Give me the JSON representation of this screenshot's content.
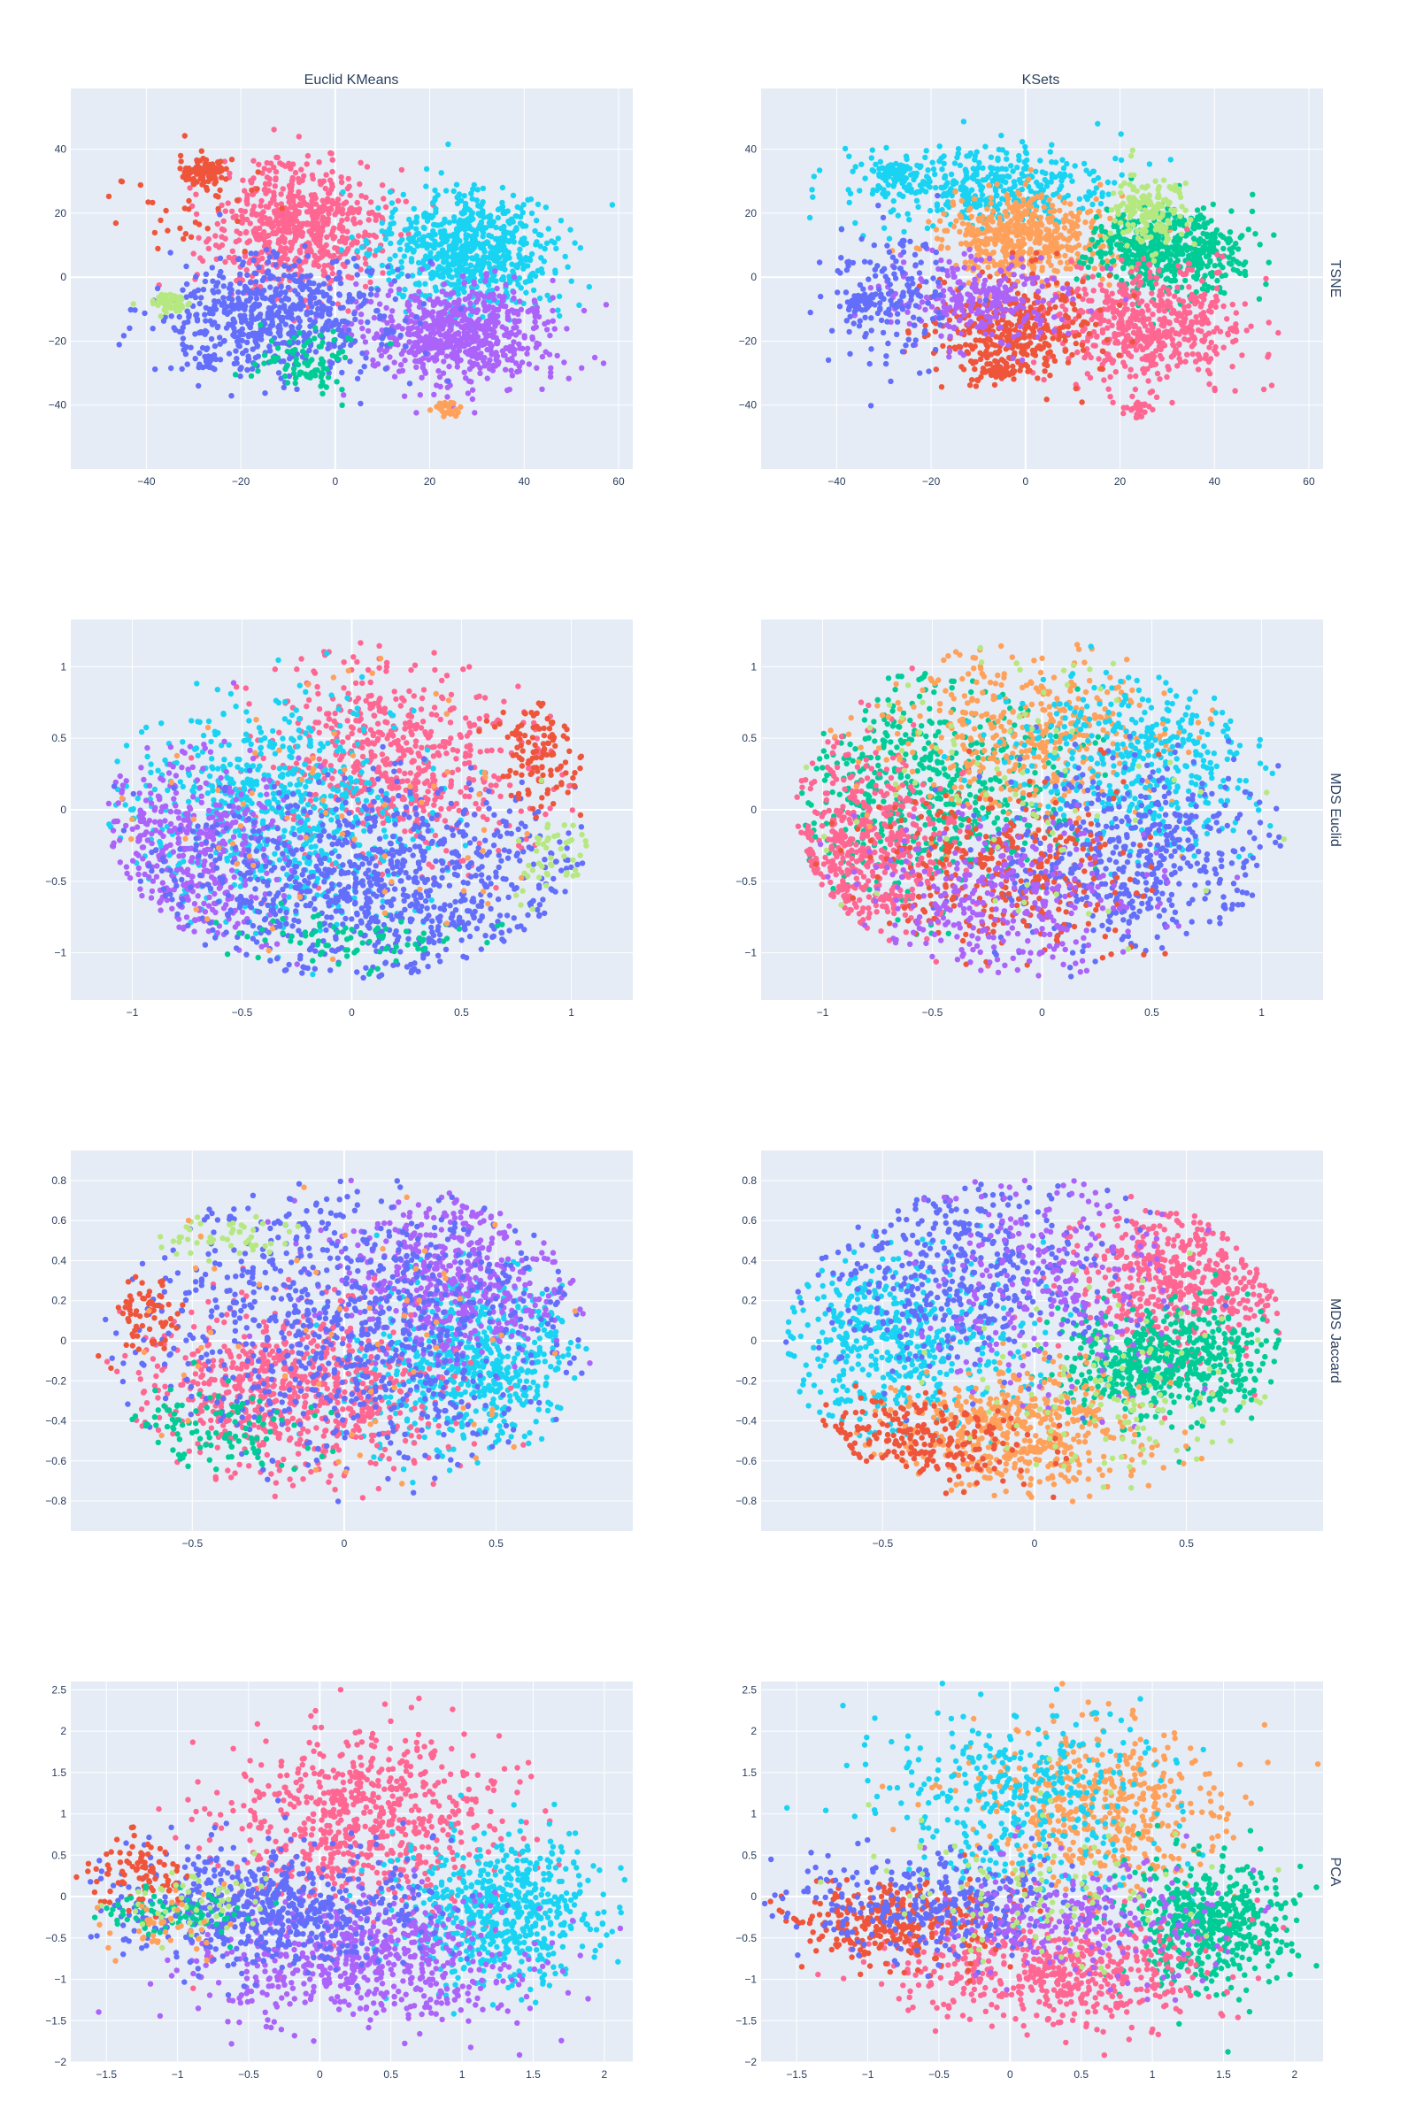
{
  "colors": {
    "c0": "#636efa",
    "c1": "#ef553b",
    "c2": "#00cc96",
    "c3": "#ab63fa",
    "c4": "#ffa15a",
    "c5": "#19d3f3",
    "c6": "#ff6692",
    "c7": "#b6e880",
    "plot_bg": "#e5ecf6",
    "grid": "#ffffff",
    "text": "#2a3f5f"
  },
  "chart_data": {
    "type": "scatter",
    "column_titles": [
      "Euclid KMeans",
      "KSets"
    ],
    "row_titles": [
      "TSNE",
      "MDS Euclid",
      "MDS Jaccard",
      "PCA"
    ],
    "grid": true,
    "rows": [
      {
        "name": "TSNE",
        "xrange": [
          -56,
          63
        ],
        "yrange": [
          -60,
          59
        ],
        "xticks": [
          -40,
          -20,
          0,
          20,
          40,
          60
        ],
        "xtick_labels": [
          "−40",
          "−20",
          "0",
          "20",
          "40",
          "60"
        ],
        "yticks": [
          -40,
          -20,
          0,
          20,
          40
        ],
        "ytick_labels": [
          "−40",
          "−20",
          "0",
          "20",
          "40"
        ],
        "left": {
          "title": "Euclid KMeans",
          "clusters": [
            {
              "color": "c6",
              "cx": -8,
              "cy": 16,
              "sx": 9,
              "sy": 10,
              "n": 650
            },
            {
              "color": "c5",
              "cx": 28,
              "cy": 8,
              "sx": 9,
              "sy": 9,
              "n": 720
            },
            {
              "color": "c3",
              "cx": 26,
              "cy": -18,
              "sx": 10,
              "sy": 8,
              "n": 650
            },
            {
              "color": "c0",
              "cx": -12,
              "cy": -12,
              "sx": 13,
              "sy": 9,
              "n": 620
            },
            {
              "color": "c2",
              "cx": -6,
              "cy": -26,
              "sx": 6,
              "sy": 5,
              "n": 90
            },
            {
              "color": "c1",
              "cx": -28,
              "cy": 33,
              "sx": 2.5,
              "sy": 2,
              "n": 90
            },
            {
              "color": "c1",
              "cx": -30,
              "cy": 25,
              "sx": 8,
              "sy": 8,
              "n": 45
            },
            {
              "color": "c7",
              "cx": -35,
              "cy": -8,
              "sx": 2,
              "sy": 1.5,
              "n": 60
            },
            {
              "color": "c4",
              "cx": 24,
              "cy": -41,
              "sx": 1.5,
              "sy": 1.5,
              "n": 35
            },
            {
              "color": "c0",
              "cx": -27,
              "cy": -26,
              "sx": 1.2,
              "sy": 1.2,
              "n": 20
            }
          ]
        },
        "right": {
          "title": "KSets",
          "clusters": [
            {
              "color": "c5",
              "cx": -8,
              "cy": 28,
              "sx": 14,
              "sy": 6,
              "n": 420
            },
            {
              "color": "c4",
              "cx": 0,
              "cy": 12,
              "sx": 9,
              "sy": 7,
              "n": 480
            },
            {
              "color": "c2",
              "cx": 30,
              "cy": 8,
              "sx": 8,
              "sy": 7,
              "n": 520
            },
            {
              "color": "c7",
              "cx": 26,
              "cy": 22,
              "sx": 4,
              "sy": 6,
              "n": 160
            },
            {
              "color": "c6",
              "cx": 25,
              "cy": -16,
              "sx": 10,
              "sy": 9,
              "n": 560
            },
            {
              "color": "c1",
              "cx": -2,
              "cy": -16,
              "sx": 9,
              "sy": 8,
              "n": 380
            },
            {
              "color": "c3",
              "cx": -10,
              "cy": -8,
              "sx": 10,
              "sy": 8,
              "n": 260
            },
            {
              "color": "c0",
              "cx": -28,
              "cy": -6,
              "sx": 7,
              "sy": 10,
              "n": 160
            },
            {
              "color": "c5",
              "cx": -28,
              "cy": 33,
              "sx": 2,
              "sy": 1.6,
              "n": 60
            },
            {
              "color": "c0",
              "cx": -35,
              "cy": -8,
              "sx": 1.8,
              "sy": 1.4,
              "n": 45
            },
            {
              "color": "c1",
              "cx": -6,
              "cy": -29,
              "sx": 2,
              "sy": 1.5,
              "n": 60
            },
            {
              "color": "c6",
              "cx": 24,
              "cy": -41,
              "sx": 1.5,
              "sy": 1.4,
              "n": 30
            }
          ]
        }
      },
      {
        "name": "MDS Euclid",
        "xrange": [
          -1.28,
          1.28
        ],
        "yrange": [
          -1.33,
          1.33
        ],
        "xticks": [
          -1,
          -0.5,
          0,
          0.5,
          1
        ],
        "xtick_labels": [
          "−1",
          "−0.5",
          "0",
          "0.5",
          "1"
        ],
        "yticks": [
          -1,
          -0.5,
          0,
          0.5,
          1
        ],
        "ytick_labels": [
          "−1",
          "−0.5",
          "0",
          "0.5",
          "1"
        ],
        "ellipse": {
          "rx": 1.12,
          "ry": 1.18
        },
        "left": {
          "title": "Euclid KMeans",
          "clusters": [
            {
              "color": "c6",
              "cx": 0.2,
              "cy": 0.35,
              "sx": 0.3,
              "sy": 0.35,
              "n": 620
            },
            {
              "color": "c5",
              "cx": -0.35,
              "cy": 0.0,
              "sx": 0.35,
              "sy": 0.4,
              "n": 680
            },
            {
              "color": "c3",
              "cx": -0.75,
              "cy": -0.3,
              "sx": 0.22,
              "sy": 0.35,
              "n": 420
            },
            {
              "color": "c0",
              "cx": 0.15,
              "cy": -0.55,
              "sx": 0.5,
              "sy": 0.35,
              "n": 900
            },
            {
              "color": "c1",
              "cx": 0.85,
              "cy": 0.4,
              "sx": 0.1,
              "sy": 0.18,
              "n": 120
            },
            {
              "color": "c7",
              "cx": 0.92,
              "cy": -0.3,
              "sx": 0.08,
              "sy": 0.18,
              "n": 50
            },
            {
              "color": "c2",
              "cx": 0.0,
              "cy": -0.95,
              "sx": 0.3,
              "sy": 0.1,
              "n": 80
            },
            {
              "color": "c4",
              "cx": -0.2,
              "cy": 0.0,
              "sx": 0.6,
              "sy": 0.6,
              "n": 70
            }
          ]
        },
        "right": {
          "title": "KSets",
          "clusters": [
            {
              "color": "c2",
              "cx": -0.55,
              "cy": 0.15,
              "sx": 0.3,
              "sy": 0.35,
              "n": 550
            },
            {
              "color": "c6",
              "cx": -0.85,
              "cy": -0.3,
              "sx": 0.22,
              "sy": 0.35,
              "n": 480
            },
            {
              "color": "c4",
              "cx": -0.1,
              "cy": 0.55,
              "sx": 0.35,
              "sy": 0.3,
              "n": 420
            },
            {
              "color": "c5",
              "cx": 0.45,
              "cy": 0.35,
              "sx": 0.3,
              "sy": 0.3,
              "n": 420
            },
            {
              "color": "c0",
              "cx": 0.4,
              "cy": -0.35,
              "sx": 0.35,
              "sy": 0.35,
              "n": 520
            },
            {
              "color": "c1",
              "cx": -0.15,
              "cy": -0.45,
              "sx": 0.3,
              "sy": 0.3,
              "n": 320
            },
            {
              "color": "c3",
              "cx": -0.2,
              "cy": -0.65,
              "sx": 0.35,
              "sy": 0.3,
              "n": 320
            },
            {
              "color": "c7",
              "cx": -0.2,
              "cy": 0.3,
              "sx": 0.5,
              "sy": 0.6,
              "n": 80
            }
          ]
        }
      },
      {
        "name": "MDS Jaccard",
        "xrange": [
          -0.9,
          0.95
        ],
        "yrange": [
          -0.95,
          0.95
        ],
        "xticks": [
          -0.5,
          0,
          0.5
        ],
        "xtick_labels": [
          "−0.5",
          "0",
          "0.5"
        ],
        "yticks": [
          -0.8,
          -0.6,
          -0.4,
          -0.2,
          0,
          0.2,
          0.4,
          0.6,
          0.8
        ],
        "ytick_labels": [
          "−0.8",
          "−0.6",
          "−0.4",
          "−0.2",
          "0",
          "0.2",
          "0.4",
          "0.6",
          "0.8"
        ],
        "ellipse": {
          "rx": 0.82,
          "ry": 0.82
        },
        "left": {
          "title": "Euclid KMeans",
          "clusters": [
            {
              "color": "c5",
              "cx": 0.42,
              "cy": -0.12,
              "sx": 0.18,
              "sy": 0.22,
              "n": 620
            },
            {
              "color": "c3",
              "cx": 0.35,
              "cy": 0.3,
              "sx": 0.2,
              "sy": 0.22,
              "n": 520
            },
            {
              "color": "c6",
              "cx": -0.15,
              "cy": -0.25,
              "sx": 0.25,
              "sy": 0.22,
              "n": 720
            },
            {
              "color": "c0",
              "cx": 0.0,
              "cy": 0.1,
              "sx": 0.38,
              "sy": 0.38,
              "n": 820
            },
            {
              "color": "c1",
              "cx": -0.65,
              "cy": 0.12,
              "sx": 0.06,
              "sy": 0.1,
              "n": 70
            },
            {
              "color": "c7",
              "cx": -0.4,
              "cy": 0.52,
              "sx": 0.12,
              "sy": 0.06,
              "n": 50
            },
            {
              "color": "c2",
              "cx": -0.5,
              "cy": -0.45,
              "sx": 0.2,
              "sy": 0.12,
              "n": 110
            },
            {
              "color": "c4",
              "cx": 0.0,
              "cy": 0.0,
              "sx": 0.45,
              "sy": 0.45,
              "n": 60
            }
          ]
        },
        "right": {
          "title": "KSets",
          "clusters": [
            {
              "color": "c6",
              "cx": 0.5,
              "cy": 0.3,
              "sx": 0.18,
              "sy": 0.2,
              "n": 520
            },
            {
              "color": "c2",
              "cx": 0.42,
              "cy": -0.1,
              "sx": 0.18,
              "sy": 0.15,
              "n": 560
            },
            {
              "color": "c5",
              "cx": -0.45,
              "cy": 0.0,
              "sx": 0.2,
              "sy": 0.22,
              "n": 480
            },
            {
              "color": "c4",
              "cx": -0.05,
              "cy": -0.45,
              "sx": 0.2,
              "sy": 0.15,
              "n": 520
            },
            {
              "color": "c0",
              "cx": -0.25,
              "cy": 0.35,
              "sx": 0.25,
              "sy": 0.25,
              "n": 440
            },
            {
              "color": "c3",
              "cx": 0.05,
              "cy": 0.35,
              "sx": 0.2,
              "sy": 0.3,
              "n": 250
            },
            {
              "color": "c1",
              "cx": -0.4,
              "cy": -0.5,
              "sx": 0.2,
              "sy": 0.12,
              "n": 220
            },
            {
              "color": "c7",
              "cx": 0.3,
              "cy": -0.3,
              "sx": 0.25,
              "sy": 0.25,
              "n": 120
            }
          ]
        }
      },
      {
        "name": "PCA",
        "xrange": [
          -1.75,
          2.2
        ],
        "yrange": [
          -2.0,
          2.6
        ],
        "xticks": [
          -1.5,
          -1,
          -0.5,
          0,
          0.5,
          1,
          1.5,
          2
        ],
        "xtick_labels": [
          "−1.5",
          "−1",
          "−0.5",
          "0",
          "0.5",
          "1",
          "1.5",
          "2"
        ],
        "yticks": [
          -2,
          -1.5,
          -1,
          -0.5,
          0,
          0.5,
          1,
          1.5,
          2,
          2.5
        ],
        "ytick_labels": [
          "−2",
          "−1.5",
          "−1",
          "−0.5",
          "0",
          "0.5",
          "1",
          "1.5",
          "2",
          "2.5"
        ],
        "left": {
          "title": "Euclid KMeans",
          "clusters": [
            {
              "color": "c6",
              "cx": 0.3,
              "cy": 0.9,
              "sx": 0.5,
              "sy": 0.55,
              "n": 700
            },
            {
              "color": "c5",
              "cx": 1.25,
              "cy": -0.15,
              "sx": 0.35,
              "sy": 0.45,
              "n": 620
            },
            {
              "color": "c3",
              "cx": 0.3,
              "cy": -0.75,
              "sx": 0.6,
              "sy": 0.4,
              "n": 620
            },
            {
              "color": "c0",
              "cx": -0.4,
              "cy": -0.15,
              "sx": 0.55,
              "sy": 0.35,
              "n": 620
            },
            {
              "color": "c1",
              "cx": -1.3,
              "cy": 0.3,
              "sx": 0.15,
              "sy": 0.2,
              "n": 90
            },
            {
              "color": "c2",
              "cx": -1.0,
              "cy": -0.2,
              "sx": 0.25,
              "sy": 0.15,
              "n": 80
            },
            {
              "color": "c7",
              "cx": -0.9,
              "cy": -0.1,
              "sx": 0.3,
              "sy": 0.2,
              "n": 50
            },
            {
              "color": "c4",
              "cx": -1.1,
              "cy": -0.4,
              "sx": 0.2,
              "sy": 0.2,
              "n": 40
            }
          ]
        },
        "right": {
          "title": "KSets",
          "clusters": [
            {
              "color": "c4",
              "cx": 0.6,
              "cy": 1.1,
              "sx": 0.45,
              "sy": 0.5,
              "n": 500
            },
            {
              "color": "c5",
              "cx": 0.1,
              "cy": 1.2,
              "sx": 0.5,
              "sy": 0.55,
              "n": 400
            },
            {
              "color": "c2",
              "cx": 1.4,
              "cy": -0.3,
              "sx": 0.3,
              "sy": 0.4,
              "n": 520
            },
            {
              "color": "c6",
              "cx": 0.4,
              "cy": -0.9,
              "sx": 0.55,
              "sy": 0.35,
              "n": 560
            },
            {
              "color": "c1",
              "cx": -0.8,
              "cy": -0.3,
              "sx": 0.4,
              "sy": 0.25,
              "n": 320
            },
            {
              "color": "c0",
              "cx": -0.5,
              "cy": -0.1,
              "sx": 0.55,
              "sy": 0.3,
              "n": 360
            },
            {
              "color": "c3",
              "cx": 0.5,
              "cy": -0.3,
              "sx": 0.5,
              "sy": 0.35,
              "n": 240
            },
            {
              "color": "c7",
              "cx": 0.2,
              "cy": 0.1,
              "sx": 0.6,
              "sy": 0.5,
              "n": 100
            }
          ]
        }
      }
    ]
  }
}
